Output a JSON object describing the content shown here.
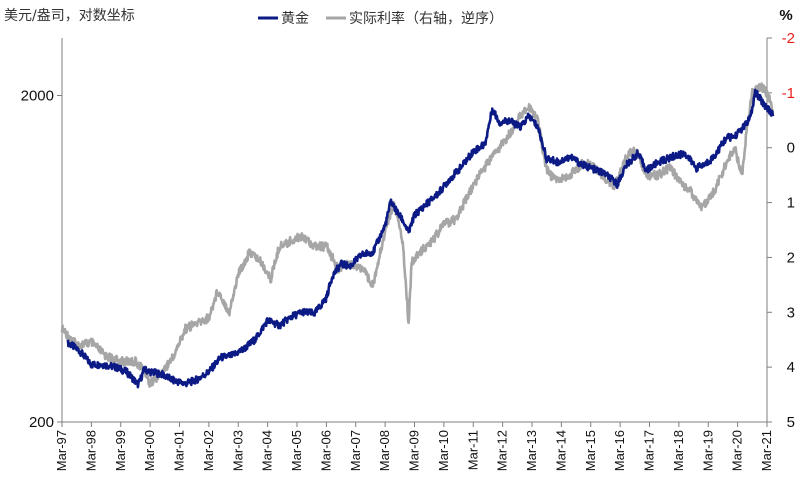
{
  "chart_data": {
    "type": "line",
    "title": "",
    "ylabel_left": "美元/盎司，对数坐标",
    "ylabel_right": "%",
    "left_axis": {
      "scale": "log",
      "range": [
        200,
        3000
      ],
      "ticks": [
        200,
        2000
      ]
    },
    "right_axis": {
      "scale": "linear",
      "reversed": true,
      "range": [
        -2,
        5
      ],
      "ticks": [
        -2,
        -1,
        0,
        1,
        2,
        3,
        4,
        5
      ]
    },
    "x_tick_labels": [
      "Mar-97",
      "Mar-98",
      "Mar-99",
      "Mar-00",
      "Mar-01",
      "Mar-02",
      "Mar-03",
      "Mar-04",
      "Mar-05",
      "Mar-06",
      "Mar-07",
      "Mar-08",
      "Mar-09",
      "Mar-10",
      "Mar-11",
      "Mar-12",
      "Mar-13",
      "Mar-14",
      "Mar-15",
      "Mar-16",
      "Mar-17",
      "Mar-18",
      "Mar-19",
      "Mar-20",
      "Mar-21"
    ],
    "legend": {
      "placement": "top-center"
    },
    "series": [
      {
        "name": "黄金",
        "axis": "left",
        "color": "#0c1a86",
        "points": [
          [
            1997.2,
            350
          ],
          [
            1997.6,
            330
          ],
          [
            1998.0,
            300
          ],
          [
            1998.4,
            300
          ],
          [
            1998.8,
            295
          ],
          [
            1999.2,
            285
          ],
          [
            1999.6,
            260
          ],
          [
            1999.8,
            290
          ],
          [
            2000.0,
            285
          ],
          [
            2000.4,
            280
          ],
          [
            2000.8,
            268
          ],
          [
            2001.2,
            262
          ],
          [
            2001.6,
            270
          ],
          [
            2002.0,
            285
          ],
          [
            2002.4,
            315
          ],
          [
            2002.8,
            320
          ],
          [
            2003.2,
            335
          ],
          [
            2003.6,
            360
          ],
          [
            2004.0,
            410
          ],
          [
            2004.4,
            395
          ],
          [
            2004.8,
            420
          ],
          [
            2005.2,
            435
          ],
          [
            2005.6,
            430
          ],
          [
            2006.0,
            480
          ],
          [
            2006.2,
            560
          ],
          [
            2006.5,
            610
          ],
          [
            2006.8,
            600
          ],
          [
            2007.2,
            650
          ],
          [
            2007.6,
            665
          ],
          [
            2008.0,
            800
          ],
          [
            2008.2,
            950
          ],
          [
            2008.4,
            880
          ],
          [
            2008.6,
            830
          ],
          [
            2008.8,
            760
          ],
          [
            2009.0,
            860
          ],
          [
            2009.4,
            930
          ],
          [
            2009.8,
            1000
          ],
          [
            2010.2,
            1110
          ],
          [
            2010.6,
            1210
          ],
          [
            2011.0,
            1350
          ],
          [
            2011.4,
            1420
          ],
          [
            2011.65,
            1820
          ],
          [
            2011.9,
            1650
          ],
          [
            2012.2,
            1680
          ],
          [
            2012.6,
            1600
          ],
          [
            2012.9,
            1730
          ],
          [
            2013.2,
            1600
          ],
          [
            2013.5,
            1280
          ],
          [
            2013.9,
            1250
          ],
          [
            2014.3,
            1300
          ],
          [
            2014.7,
            1230
          ],
          [
            2015.0,
            1200
          ],
          [
            2015.5,
            1150
          ],
          [
            2015.9,
            1070
          ],
          [
            2016.2,
            1220
          ],
          [
            2016.6,
            1330
          ],
          [
            2016.9,
            1180
          ],
          [
            2017.3,
            1250
          ],
          [
            2017.8,
            1300
          ],
          [
            2018.2,
            1330
          ],
          [
            2018.6,
            1200
          ],
          [
            2018.9,
            1230
          ],
          [
            2019.2,
            1300
          ],
          [
            2019.6,
            1480
          ],
          [
            2019.9,
            1500
          ],
          [
            2020.2,
            1600
          ],
          [
            2020.45,
            1720
          ],
          [
            2020.6,
            2050
          ],
          [
            2020.9,
            1880
          ],
          [
            2021.1,
            1800
          ],
          [
            2021.2,
            1730
          ]
        ]
      },
      {
        "name": "实际利率（右轴，逆序）",
        "axis": "right",
        "color": "#a6a6a6",
        "points": [
          [
            1997.0,
            3.3
          ],
          [
            1997.5,
            3.6
          ],
          [
            1998.0,
            3.55
          ],
          [
            1998.5,
            3.8
          ],
          [
            1999.0,
            3.9
          ],
          [
            1999.5,
            3.9
          ],
          [
            1999.8,
            4.05
          ],
          [
            2000.0,
            4.3
          ],
          [
            2000.4,
            4.1
          ],
          [
            2000.8,
            3.8
          ],
          [
            2001.2,
            3.3
          ],
          [
            2001.6,
            3.2
          ],
          [
            2002.0,
            3.1
          ],
          [
            2002.3,
            2.6
          ],
          [
            2002.7,
            3.0
          ],
          [
            2003.0,
            2.3
          ],
          [
            2003.4,
            1.9
          ],
          [
            2003.8,
            2.1
          ],
          [
            2004.1,
            2.4
          ],
          [
            2004.4,
            1.8
          ],
          [
            2004.8,
            1.7
          ],
          [
            2005.2,
            1.6
          ],
          [
            2005.6,
            1.8
          ],
          [
            2006.0,
            1.8
          ],
          [
            2006.4,
            2.2
          ],
          [
            2006.8,
            2.1
          ],
          [
            2007.2,
            2.2
          ],
          [
            2007.6,
            2.5
          ],
          [
            2008.0,
            1.5
          ],
          [
            2008.3,
            1.0
          ],
          [
            2008.6,
            1.7
          ],
          [
            2008.8,
            3.2
          ],
          [
            2008.9,
            2.1
          ],
          [
            2009.2,
            1.9
          ],
          [
            2009.6,
            1.7
          ],
          [
            2010.0,
            1.4
          ],
          [
            2010.4,
            1.3
          ],
          [
            2010.8,
            0.9
          ],
          [
            2011.2,
            0.5
          ],
          [
            2011.6,
            0.2
          ],
          [
            2011.9,
            0.0
          ],
          [
            2012.3,
            -0.3
          ],
          [
            2012.6,
            -0.6
          ],
          [
            2012.9,
            -0.75
          ],
          [
            2013.2,
            -0.5
          ],
          [
            2013.45,
            0.3
          ],
          [
            2013.6,
            0.5
          ],
          [
            2013.9,
            0.6
          ],
          [
            2014.3,
            0.5
          ],
          [
            2014.7,
            0.3
          ],
          [
            2015.0,
            0.3
          ],
          [
            2015.4,
            0.5
          ],
          [
            2015.8,
            0.7
          ],
          [
            2016.2,
            0.2
          ],
          [
            2016.5,
            0.0
          ],
          [
            2016.9,
            0.5
          ],
          [
            2017.3,
            0.5
          ],
          [
            2017.7,
            0.35
          ],
          [
            2018.0,
            0.6
          ],
          [
            2018.4,
            0.8
          ],
          [
            2018.8,
            1.1
          ],
          [
            2019.2,
            0.8
          ],
          [
            2019.6,
            0.3
          ],
          [
            2019.9,
            0.0
          ],
          [
            2020.15,
            0.5
          ],
          [
            2020.3,
            -0.3
          ],
          [
            2020.5,
            -1.0
          ],
          [
            2020.8,
            -1.1
          ],
          [
            2021.0,
            -1.0
          ],
          [
            2021.2,
            -0.7
          ]
        ]
      }
    ]
  }
}
